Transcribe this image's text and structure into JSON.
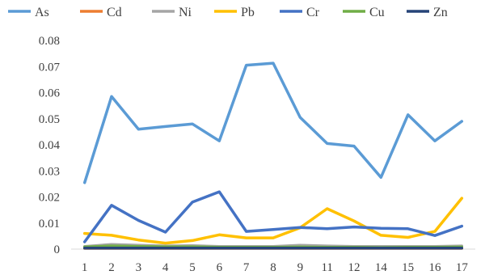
{
  "chart_data": {
    "type": "line",
    "title": "",
    "xlabel": "",
    "ylabel": "",
    "categories": [
      "1",
      "2",
      "3",
      "4",
      "5",
      "6",
      "7",
      "8",
      "9",
      "11",
      "12",
      "14",
      "15",
      "16",
      "17"
    ],
    "ylim": [
      0,
      0.08
    ],
    "yticks": [
      "0",
      "0.01",
      "0.02",
      "0.03",
      "0.04",
      "0.05",
      "0.06",
      "0.07",
      "0.08"
    ],
    "legend_position": "top",
    "grid": false,
    "series": [
      {
        "name": "As",
        "color": "#5B9BD5",
        "values": [
          0.0255,
          0.0585,
          0.046,
          0.047,
          0.048,
          0.0415,
          0.0705,
          0.0713,
          0.0505,
          0.0405,
          0.0395,
          0.0275,
          0.0515,
          0.0415,
          0.049
        ]
      },
      {
        "name": "Cd",
        "color": "#ED7D31",
        "values": [
          0.0003,
          0.0003,
          0.0003,
          0.0003,
          0.0003,
          0.0003,
          0.0003,
          0.0003,
          0.0003,
          0.0003,
          0.0003,
          0.0003,
          0.0003,
          0.0003,
          0.0003
        ]
      },
      {
        "name": "Ni",
        "color": "#A5A5A5",
        "values": [
          0.001,
          0.0018,
          0.0015,
          0.0012,
          0.0013,
          0.001,
          0.001,
          0.001,
          0.0015,
          0.0012,
          0.001,
          0.001,
          0.001,
          0.001,
          0.0012
        ]
      },
      {
        "name": "Pb",
        "color": "#FFC000",
        "values": [
          0.006,
          0.0053,
          0.0035,
          0.0023,
          0.0033,
          0.0055,
          0.0043,
          0.0043,
          0.0082,
          0.0155,
          0.0108,
          0.0053,
          0.0045,
          0.0068,
          0.0195
        ]
      },
      {
        "name": "Cr",
        "color": "#4472C4",
        "values": [
          0.0028,
          0.0168,
          0.011,
          0.0065,
          0.018,
          0.022,
          0.0068,
          0.0075,
          0.0083,
          0.0078,
          0.0085,
          0.008,
          0.0078,
          0.0052,
          0.0088
        ]
      },
      {
        "name": "Cu",
        "color": "#70AD47",
        "values": [
          0.0008,
          0.0012,
          0.001,
          0.0009,
          0.0009,
          0.0007,
          0.0007,
          0.0007,
          0.0008,
          0.0007,
          0.0007,
          0.0006,
          0.0007,
          0.0007,
          0.0008
        ]
      },
      {
        "name": "Zn",
        "color": "#264478",
        "values": [
          0.0004,
          0.0004,
          0.0004,
          0.0004,
          0.0004,
          0.0004,
          0.0004,
          0.0004,
          0.0004,
          0.0004,
          0.0004,
          0.0004,
          0.0004,
          0.0004,
          0.0004
        ]
      }
    ]
  }
}
